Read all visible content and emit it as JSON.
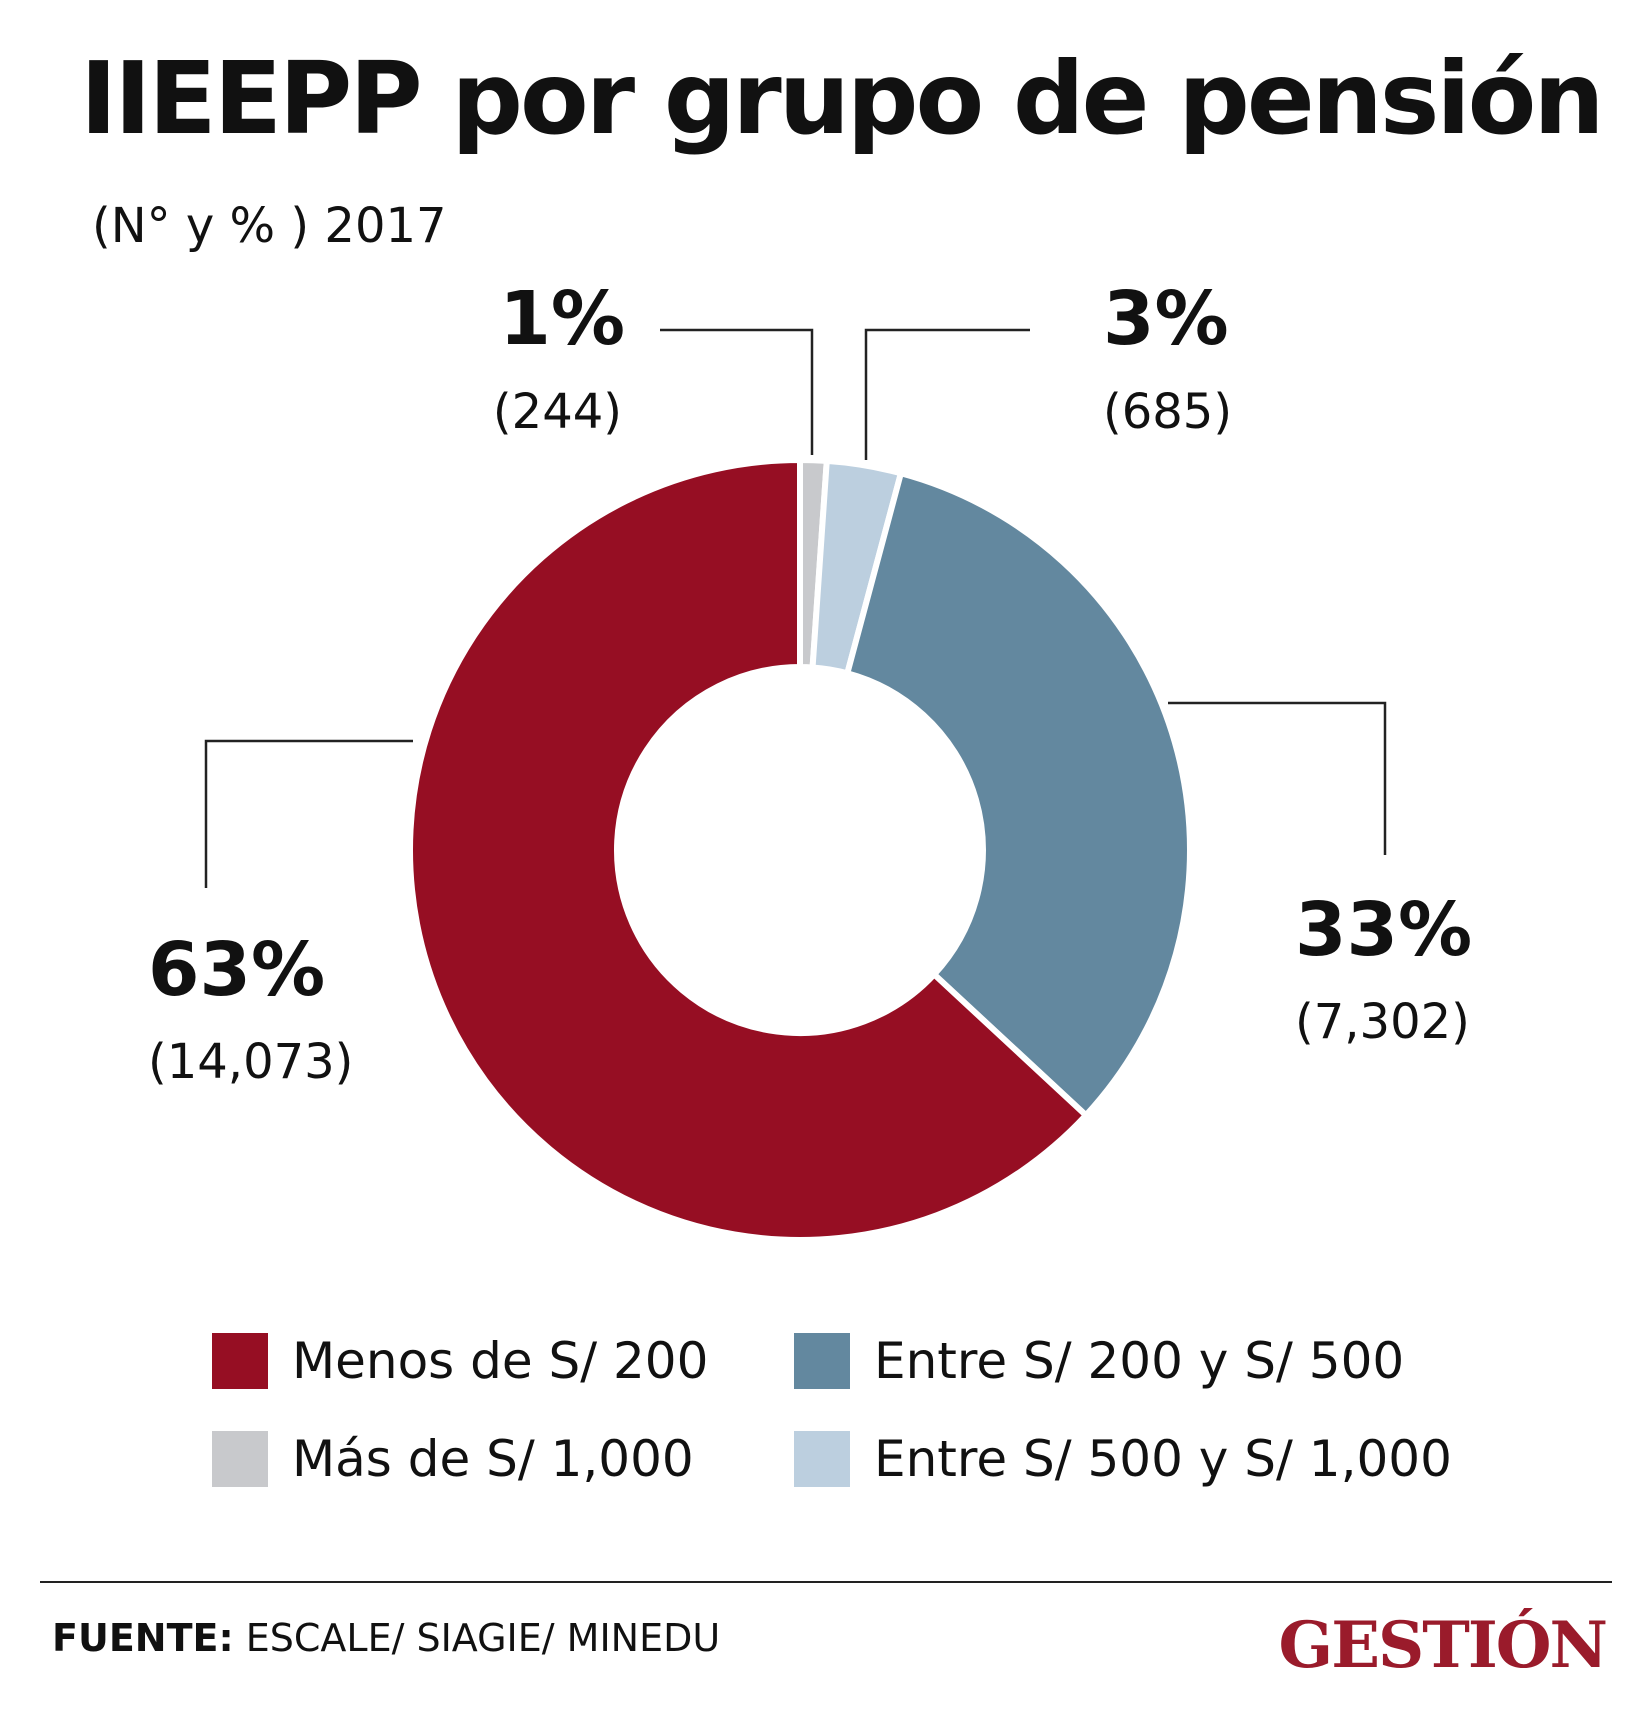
{
  "colors": {
    "menos_200": "#960e23",
    "entre_200_500": "#63889f",
    "mas_1000": "#c8c9cc",
    "entre_500_1000": "#bccfdf",
    "brand": "#9a1b2b"
  },
  "chart_data": {
    "type": "pie",
    "title": "IIEEPP por grupo de pensión",
    "subtitle": "(N° y % ) 2017",
    "slices": [
      {
        "name": "Más de S/ 1,000",
        "value": 244,
        "pct_label": "1%",
        "count_label": "(244)",
        "color": "#c8c9cc"
      },
      {
        "name": "Entre S/ 500 y S/ 1,000",
        "value": 685,
        "pct_label": "3%",
        "count_label": "(685)",
        "color": "#bccfdf"
      },
      {
        "name": "Entre S/ 200 y S/ 500",
        "value": 7302,
        "pct_label": "33%",
        "count_label": "(7,302)",
        "color": "#63889f"
      },
      {
        "name": "Menos de S/ 200",
        "value": 14073,
        "pct_label": "63%",
        "count_label": "(14,073)",
        "color": "#960e23"
      }
    ],
    "legend": [
      "Menos de S/ 200",
      "Entre S/ 200 y S/ 500",
      "Más de S/ 1,000",
      "Entre S/ 500 y S/ 1,000"
    ]
  },
  "footer": {
    "source_label": "FUENTE:",
    "source_text": " ESCALE/ SIAGIE/ MINEDU",
    "logo": "GESTIÓN"
  }
}
